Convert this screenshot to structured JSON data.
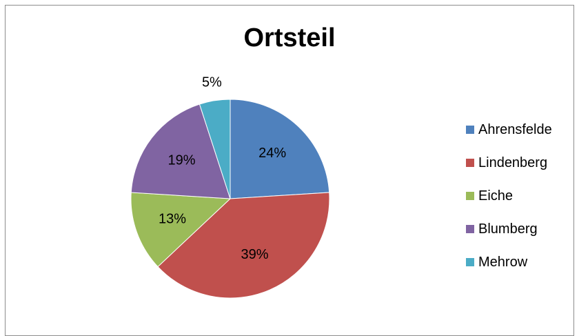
{
  "chart_data": {
    "type": "pie",
    "title": "Ortsteil",
    "categories": [
      "Ahrensfelde",
      "Lindenberg",
      "Eiche",
      "Blumberg",
      "Mehrow"
    ],
    "values": [
      24,
      39,
      13,
      19,
      5
    ],
    "labels": [
      "24%",
      "39%",
      "13%",
      "19%",
      "5%"
    ],
    "colors": [
      "#4F81BD",
      "#C0504D",
      "#9BBB59",
      "#8064A2",
      "#4BACC6"
    ],
    "legend_position": "right"
  }
}
